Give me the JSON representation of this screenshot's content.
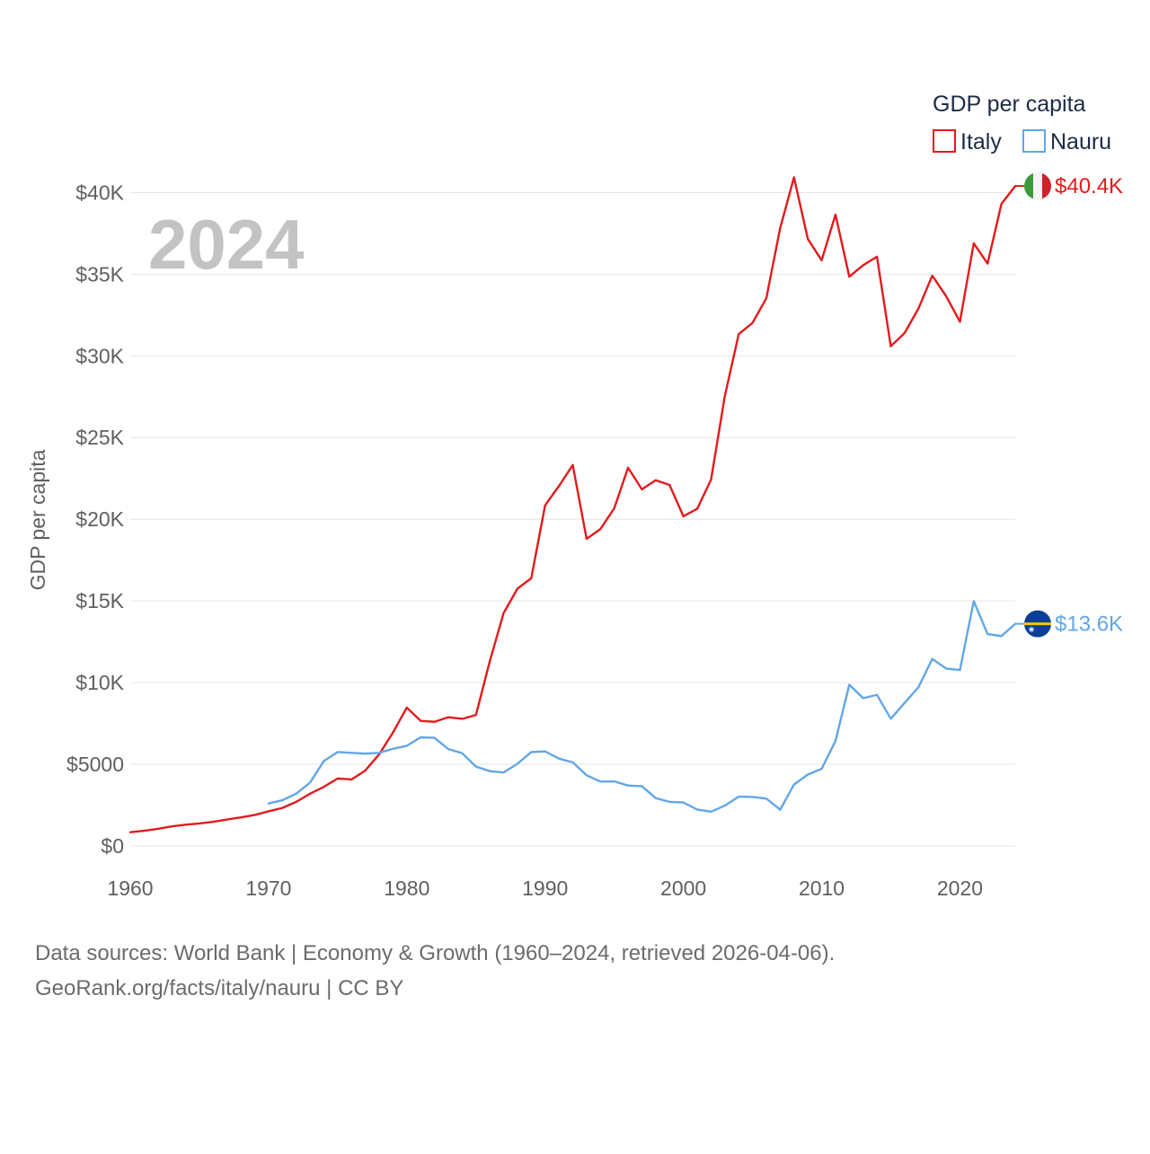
{
  "chart_data": {
    "type": "line",
    "title": "GDP per capita",
    "year_label": "2024",
    "ylabel": "GDP per capita",
    "xlabel": "",
    "xlim": [
      1960,
      2024
    ],
    "ylim": [
      0,
      42000
    ],
    "x_ticks": [
      1960,
      1970,
      1980,
      1990,
      2000,
      2010,
      2020
    ],
    "y_ticks": [
      0,
      5000,
      10000,
      15000,
      20000,
      25000,
      30000,
      35000,
      40000
    ],
    "y_tick_labels": [
      "$0",
      "$5000",
      "$10K",
      "$15K",
      "$20K",
      "$25K",
      "$30K",
      "$35K",
      "$40K"
    ],
    "grid": true,
    "legend": {
      "title": "GDP per capita",
      "position": "top-right"
    },
    "series": [
      {
        "name": "Italy",
        "color": "#e31a1c",
        "end_label": "$40.4K",
        "flag": "italy-flag",
        "x": [
          1960,
          1961,
          1962,
          1963,
          1964,
          1965,
          1966,
          1967,
          1968,
          1969,
          1970,
          1971,
          1972,
          1973,
          1974,
          1975,
          1976,
          1977,
          1978,
          1979,
          1980,
          1981,
          1982,
          1983,
          1984,
          1985,
          1986,
          1987,
          1988,
          1989,
          1990,
          1991,
          1992,
          1993,
          1994,
          1995,
          1996,
          1997,
          1998,
          1999,
          2000,
          2001,
          2002,
          2003,
          2004,
          2005,
          2006,
          2007,
          2008,
          2009,
          2010,
          2011,
          2012,
          2013,
          2014,
          2015,
          2016,
          2017,
          2018,
          2019,
          2020,
          2021,
          2022,
          2023,
          2024
        ],
        "values": [
          840,
          930,
          1050,
          1200,
          1300,
          1380,
          1480,
          1620,
          1750,
          1900,
          2120,
          2330,
          2700,
          3200,
          3620,
          4130,
          4070,
          4620,
          5610,
          6950,
          8470,
          7660,
          7600,
          7880,
          7780,
          8020,
          11310,
          14260,
          15750,
          16390,
          20850,
          22030,
          23320,
          18800,
          19400,
          20670,
          23160,
          21830,
          22390,
          22100,
          20180,
          20640,
          22420,
          27550,
          31330,
          32020,
          33530,
          37820,
          40930,
          37160,
          35850,
          38650,
          34850,
          35550,
          36070,
          30590,
          31400,
          32900,
          34910,
          33660,
          32090,
          36890,
          35650,
          39300,
          40400
        ]
      },
      {
        "name": "Nauru",
        "color": "#62a6e6",
        "end_label": "$13.6K",
        "flag": "nauru-flag",
        "x": [
          1970,
          1971,
          1972,
          1973,
          1974,
          1975,
          1976,
          1977,
          1978,
          1979,
          1980,
          1981,
          1982,
          1983,
          1984,
          1985,
          1986,
          1987,
          1988,
          1989,
          1990,
          1991,
          1992,
          1993,
          1994,
          1995,
          1996,
          1997,
          1998,
          1999,
          2000,
          2001,
          2002,
          2003,
          2004,
          2005,
          2006,
          2007,
          2008,
          2009,
          2010,
          2011,
          2012,
          2013,
          2014,
          2015,
          2016,
          2017,
          2018,
          2019,
          2020,
          2021,
          2022,
          2023,
          2024
        ],
        "values": [
          2600,
          2800,
          3200,
          3880,
          5200,
          5750,
          5700,
          5650,
          5700,
          5950,
          6130,
          6650,
          6620,
          5930,
          5680,
          4860,
          4580,
          4500,
          5030,
          5750,
          5790,
          5350,
          5120,
          4330,
          3940,
          3950,
          3700,
          3660,
          2930,
          2700,
          2660,
          2230,
          2100,
          2470,
          3020,
          3000,
          2900,
          2220,
          3760,
          4370,
          4720,
          6430,
          9870,
          9050,
          9250,
          7790,
          8760,
          9720,
          11450,
          10860,
          10770,
          14990,
          12970,
          12850,
          13600
        ]
      }
    ],
    "source_line1": "Data sources: World Bank | Economy & Growth (1960–2024, retrieved 2026-04-06).",
    "source_line2": "GeoRank.org/facts/italy/nauru | CC BY"
  }
}
